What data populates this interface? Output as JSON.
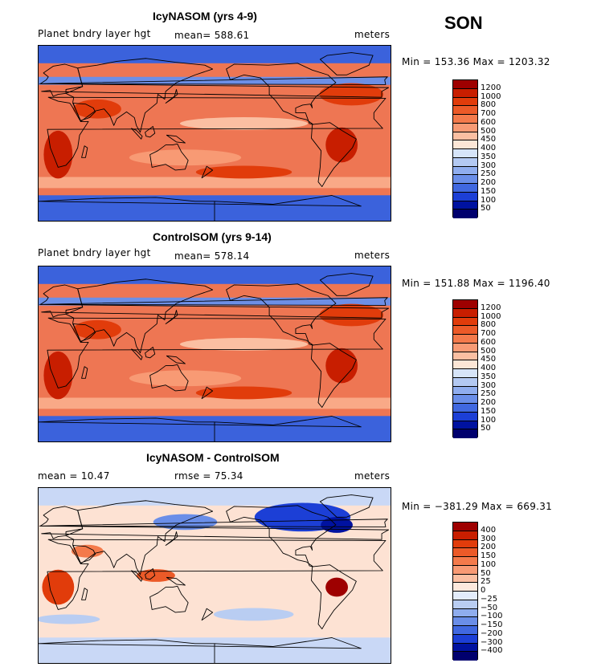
{
  "season": "SON",
  "panels": [
    {
      "title": "IcyNASOM (yrs 4-9)",
      "left_label": "Planet bndry layer hgt",
      "mid_label": "mean= 588.61",
      "right_label": "meters",
      "minmax": "Min = 153.36 Max = 1203.32",
      "levels": [
        "1200",
        "1000",
        "800",
        "700",
        "600",
        "500",
        "450",
        "400",
        "350",
        "300",
        "250",
        "200",
        "150",
        "100",
        "50"
      ],
      "colors": [
        "#9e0000",
        "#c81e00",
        "#e13c0b",
        "#ec5a28",
        "#f47a4b",
        "#f89a74",
        "#fbbfa2",
        "#fce6d6",
        "#d6e4f8",
        "#b3c9f2",
        "#8fadee",
        "#6a8ee8",
        "#4068e0",
        "#1c3fd6",
        "#0012a0",
        "#00006e"
      ],
      "base": "#ee7653",
      "polar": "#3b62dc"
    },
    {
      "title": "ControlSOM (yrs 9-14)",
      "left_label": "Planet bndry layer hgt",
      "mid_label": "mean= 578.14",
      "right_label": "meters",
      "minmax": "Min = 151.88 Max = 1196.40",
      "levels": [
        "1200",
        "1000",
        "800",
        "700",
        "600",
        "500",
        "450",
        "400",
        "350",
        "300",
        "250",
        "200",
        "150",
        "100",
        "50"
      ],
      "colors": [
        "#9e0000",
        "#c81e00",
        "#e13c0b",
        "#ec5a28",
        "#f47a4b",
        "#f89a74",
        "#fbbfa2",
        "#fce6d6",
        "#d6e4f8",
        "#b3c9f2",
        "#8fadee",
        "#6a8ee8",
        "#4068e0",
        "#1c3fd6",
        "#0012a0",
        "#00006e"
      ],
      "base": "#ee7653",
      "polar": "#3b62dc"
    },
    {
      "title": "IcyNASOM - ControlSOM",
      "left_label": "mean =  10.47",
      "mid_label": "rmse =  75.34",
      "right_label": "meters",
      "minmax": "Min = −381.29 Max = 669.31",
      "levels": [
        "400",
        "300",
        "200",
        "150",
        "100",
        "50",
        "25",
        "0",
        "−25",
        "−50",
        "−100",
        "−150",
        "−200",
        "−300",
        "−400"
      ],
      "colors": [
        "#9e0000",
        "#c81e00",
        "#e13c0b",
        "#ec5a28",
        "#f47a4b",
        "#f89a74",
        "#fbbfa2",
        "#fde9dd",
        "#e3ecfb",
        "#b9cdf2",
        "#8fadee",
        "#6a8ee8",
        "#4068e0",
        "#1c3fd6",
        "#0012a0",
        "#00006e"
      ],
      "base": "#fde2d3",
      "polar": "#c9d8f6"
    }
  ]
}
